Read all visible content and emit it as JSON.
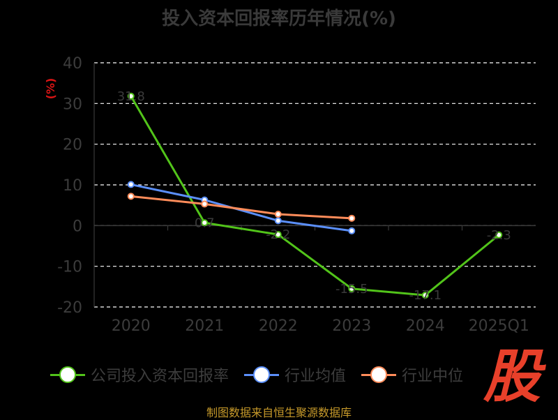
{
  "chart_data": {
    "type": "line",
    "title": "投入资本回报率历年情况(%)",
    "ylabel": "(%)",
    "categories": [
      "2020",
      "2021",
      "2022",
      "2023",
      "2024",
      "2025Q1"
    ],
    "y_ticks": [
      "40",
      "30",
      "20",
      "10",
      "0",
      "-10",
      "-20"
    ],
    "ylim": [
      -20,
      40
    ],
    "grid": true,
    "legend_position": "bottom",
    "series": [
      {
        "name": "公司投入资本回报率",
        "color": "#52c41a",
        "values": [
          31.8,
          0.7,
          -2.2,
          -15.5,
          -17.1,
          -2.3
        ],
        "labels": [
          "31.8",
          "0.7",
          "-2.2",
          "-15.5",
          "-17.1",
          "-2.3"
        ]
      },
      {
        "name": "行业均值",
        "color": "#5b8ff9",
        "values": [
          10.1,
          6.3,
          1.2,
          -1.3,
          null,
          null
        ]
      },
      {
        "name": "行业中位",
        "color": "#ff8c5a",
        "values": [
          7.2,
          5.3,
          2.8,
          1.8,
          null,
          null
        ]
      }
    ]
  },
  "source": "制图数据来自恒生聚源数据库",
  "watermark": "股",
  "colors": {
    "axis_text": "#3c3c3c",
    "ylabel": "#d91515",
    "grid": "#ffffff",
    "title": "#3a3a3a"
  }
}
